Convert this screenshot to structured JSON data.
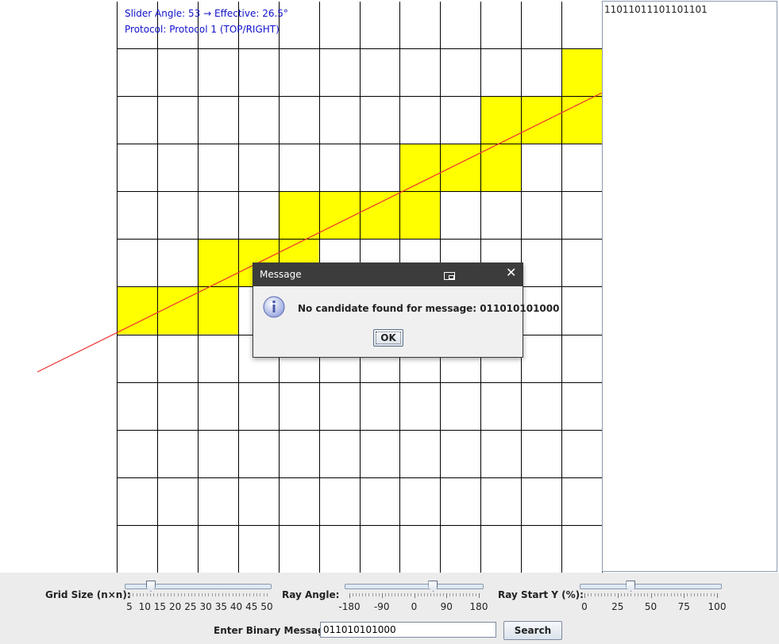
{
  "overlay": {
    "slider_info": "Slider Angle: 53 → Effective: 26.5°",
    "protocol_info": "Protocol: Protocol 1 (TOP/RIGHT)"
  },
  "grid": {
    "rows": 11,
    "cols": 12,
    "highlight_color": "#ffff00",
    "ray_color": "#ee3333",
    "highlighted_cells": [
      [
        0,
        11
      ],
      [
        1,
        9
      ],
      [
        1,
        10
      ],
      [
        1,
        11
      ],
      [
        2,
        7
      ],
      [
        2,
        8
      ],
      [
        2,
        9
      ],
      [
        3,
        4
      ],
      [
        3,
        5
      ],
      [
        3,
        6
      ],
      [
        3,
        7
      ],
      [
        4,
        2
      ],
      [
        4,
        3
      ],
      [
        4,
        4
      ],
      [
        5,
        0
      ],
      [
        5,
        1
      ],
      [
        5,
        2
      ]
    ]
  },
  "side_panel": {
    "binary_text": "11011011101101101"
  },
  "controls": {
    "grid_size": {
      "label": "Grid Size (n×n):",
      "min": 5,
      "max": 50,
      "value": 12,
      "tick_labels": [
        "5",
        "10",
        "15",
        "20",
        "25",
        "30",
        "35",
        "40",
        "45",
        "50"
      ]
    },
    "ray_angle": {
      "label": "Ray Angle:",
      "min": -180,
      "max": 180,
      "value": 53,
      "tick_labels": [
        "-180",
        "-90",
        "0",
        "90",
        "180"
      ]
    },
    "ray_start_y": {
      "label": "Ray Start Y (%):",
      "min": 0,
      "max": 100,
      "value": 35,
      "tick_labels": [
        "0",
        "25",
        "50",
        "75",
        "100"
      ]
    },
    "message_label": "Enter Binary Message:",
    "message_value": "011010101000",
    "search_label": "Search"
  },
  "dialog": {
    "title": "Message",
    "message": "No candidate found for message: 011010101000",
    "ok_label": "OK"
  }
}
